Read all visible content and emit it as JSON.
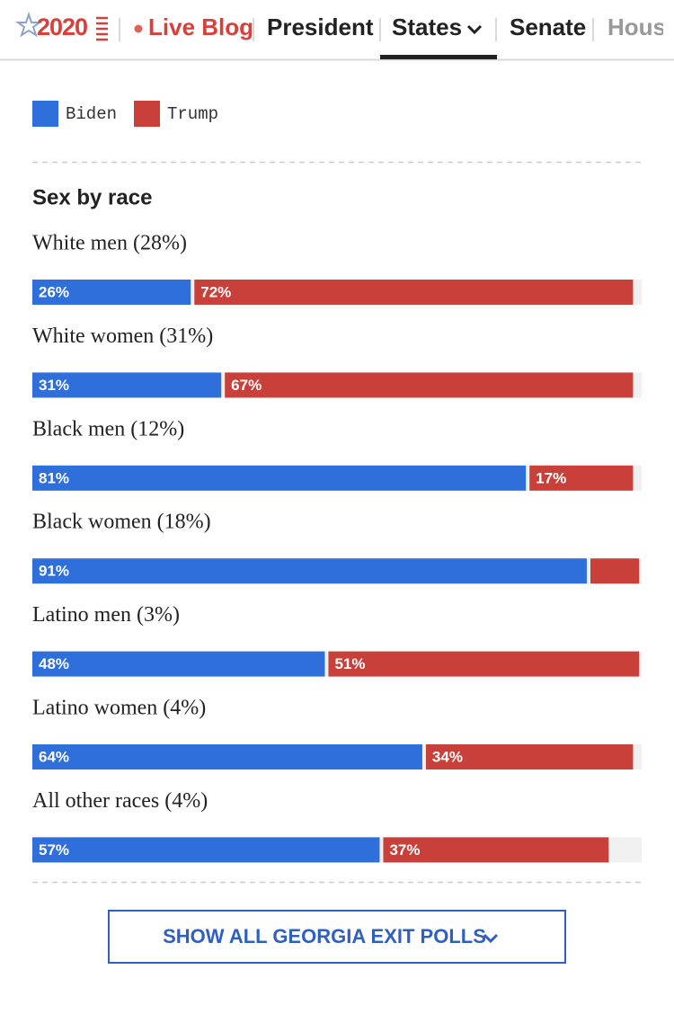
{
  "nav": {
    "logo": "2020",
    "items": [
      "Live Blog",
      "President",
      "States",
      "Senate",
      "House"
    ]
  },
  "legend": [
    {
      "name": "Biden",
      "color": "#2f6fdb"
    },
    {
      "name": "Trump",
      "color": "#c9403a"
    }
  ],
  "section_title": "Sex by race",
  "xlim": [
    0,
    100
  ],
  "rows": [
    {
      "label": "White men (28%)",
      "values": [
        26,
        72
      ],
      "value_labels": [
        "26%",
        "72%"
      ]
    },
    {
      "label": "White women (31%)",
      "values": [
        31,
        67
      ],
      "value_labels": [
        "31%",
        "67%"
      ]
    },
    {
      "label": "Black men (12%)",
      "values": [
        81,
        17
      ],
      "value_labels": [
        "81%",
        "17%"
      ]
    },
    {
      "label": "Black women (18%)",
      "values": [
        91,
        8
      ],
      "value_labels": [
        "91%",
        null
      ]
    },
    {
      "label": "Latino men (3%)",
      "values": [
        48,
        51
      ],
      "value_labels": [
        "48%",
        "51%"
      ]
    },
    {
      "label": "Latino women (4%)",
      "values": [
        64,
        34
      ],
      "value_labels": [
        "64%",
        "34%"
      ]
    },
    {
      "label": "All other races (4%)",
      "values": [
        57,
        37
      ],
      "value_labels": [
        "57%",
        "37%"
      ]
    }
  ],
  "button": "SHOW ALL GEORGIA EXIT POLLS"
}
